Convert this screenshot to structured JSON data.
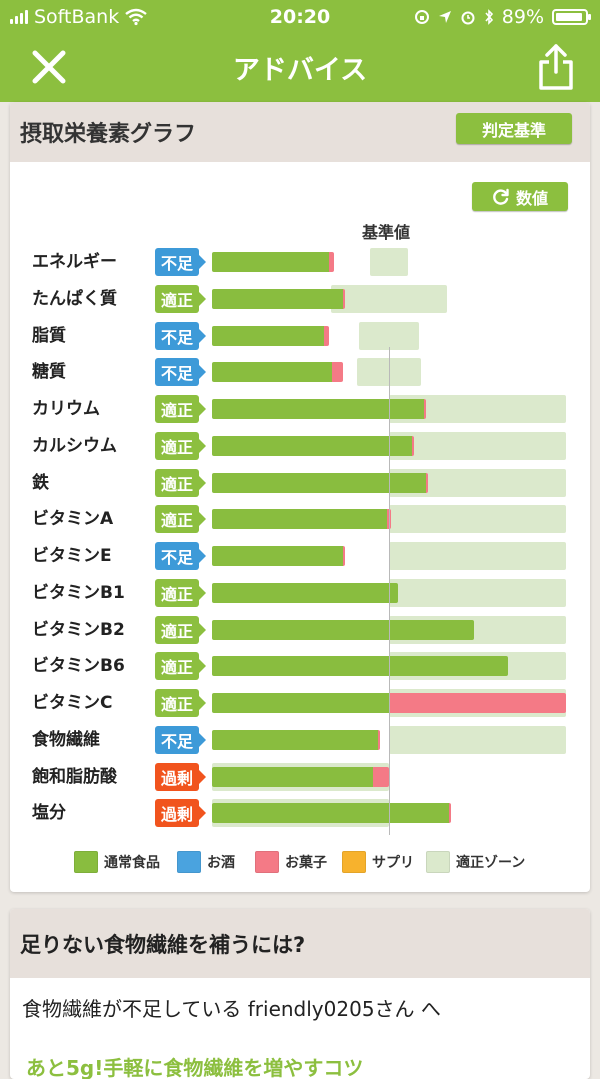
{
  "status_bar": {
    "carrier": "SoftBank",
    "time": "20:20",
    "battery": "89%"
  },
  "nav": {
    "title": "アドバイス"
  },
  "graph_card": {
    "title": "摂取栄養素グラフ",
    "criteria_button": "判定基準",
    "value_button": "数値",
    "reference_label": "基準値"
  },
  "colors": {
    "brand_green": "#8cbf3f",
    "food": "#89bd3f",
    "alcohol": "#4aa3df",
    "snack": "#f47a86",
    "supplement": "#f7b22d",
    "zone": "#dbe9cc",
    "status_deficient": "#3d9ad8",
    "status_adequate": "#8cbf3f",
    "status_excess": "#f1541e"
  },
  "chart_data": {
    "type": "bar",
    "orientation": "horizontal",
    "reference_line": "基準値",
    "rows": [
      {
        "name": "エネルギー",
        "status": "不足",
        "food": 0.66,
        "snack": 0.03,
        "zone": [
          0.89,
          1.11
        ]
      },
      {
        "name": "たんぱく質",
        "status": "適正",
        "food": 0.74,
        "snack": 0.01,
        "zone": [
          0.67,
          1.33
        ]
      },
      {
        "name": "脂質",
        "status": "不足",
        "food": 0.63,
        "snack": 0.03,
        "zone": [
          0.83,
          1.17
        ]
      },
      {
        "name": "糖質",
        "status": "不足",
        "food": 0.68,
        "snack": 0.06,
        "zone": [
          0.82,
          1.18
        ]
      },
      {
        "name": "カリウム",
        "status": "適正",
        "food": 1.2,
        "snack": 0.01,
        "zone": [
          1.0,
          2.0
        ]
      },
      {
        "name": "カルシウム",
        "status": "適正",
        "food": 1.13,
        "snack": 0.01,
        "zone": [
          1.0,
          2.0
        ]
      },
      {
        "name": "鉄",
        "status": "適正",
        "food": 1.21,
        "snack": 0.01,
        "zone": [
          1.0,
          2.0
        ]
      },
      {
        "name": "ビタミンA",
        "status": "適正",
        "food": 0.99,
        "snack": 0.02,
        "zone": [
          1.0,
          2.0
        ]
      },
      {
        "name": "ビタミンE",
        "status": "不足",
        "food": 0.74,
        "snack": 0.01,
        "zone": [
          1.0,
          2.0
        ]
      },
      {
        "name": "ビタミンB1",
        "status": "適正",
        "food": 1.05,
        "snack": 0.0,
        "zone": [
          1.0,
          2.0
        ]
      },
      {
        "name": "ビタミンB2",
        "status": "適正",
        "food": 1.48,
        "snack": 0.0,
        "zone": [
          1.0,
          2.0
        ]
      },
      {
        "name": "ビタミンB6",
        "status": "適正",
        "food": 1.67,
        "snack": 0.0,
        "zone": [
          1.0,
          2.0
        ]
      },
      {
        "name": "ビタミンC",
        "status": "適正",
        "food": 1.0,
        "snack": 1.0,
        "zone": [
          1.0,
          2.0
        ]
      },
      {
        "name": "食物繊維",
        "status": "不足",
        "food": 0.94,
        "snack": 0.01,
        "zone": [
          1.0,
          2.0
        ]
      },
      {
        "name": "飽和脂肪酸",
        "status": "過剰",
        "food": 0.91,
        "snack": 0.09,
        "zone": [
          0.0,
          1.0
        ]
      },
      {
        "name": "塩分",
        "status": "過剰",
        "food": 1.34,
        "snack": 0.01,
        "zone": [
          0.0,
          1.0
        ]
      }
    ],
    "legend": [
      {
        "label": "通常食品",
        "color": "#89bd3f"
      },
      {
        "label": "お酒",
        "color": "#4aa3df"
      },
      {
        "label": "お菓子",
        "color": "#f47a86"
      },
      {
        "label": "サプリ",
        "color": "#f7b22d"
      },
      {
        "label": "適正ゾーン",
        "color": "#dbe9cc"
      }
    ]
  },
  "advice_card": {
    "title": "足りない食物繊維を補うには?",
    "line1": "食物繊維が不足している friendly0205さん へ",
    "line2": "あと5g!手軽に食物繊維を増やすコツ"
  }
}
